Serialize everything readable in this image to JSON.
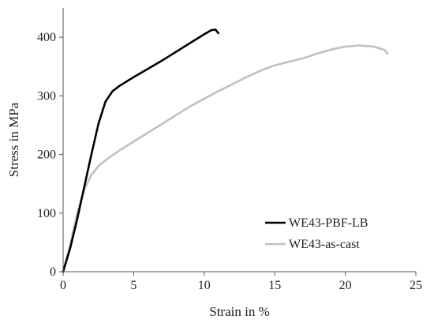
{
  "chart_data": {
    "type": "line",
    "title": "",
    "xlabel": "Strain in %",
    "ylabel": "Stress in MPa",
    "xlim": [
      0,
      25
    ],
    "ylim": [
      0,
      450
    ],
    "xticks": [
      0,
      5,
      10,
      15,
      20,
      25
    ],
    "yticks": [
      0,
      100,
      200,
      300,
      400
    ],
    "grid": false,
    "legend": "bottom-right",
    "series": [
      {
        "name": "WE43-PBF-LB",
        "color": "#000000",
        "points": [
          [
            0,
            0
          ],
          [
            0.5,
            40
          ],
          [
            1.0,
            90
          ],
          [
            1.5,
            145
          ],
          [
            2.0,
            200
          ],
          [
            2.5,
            252
          ],
          [
            3.0,
            290
          ],
          [
            3.5,
            308
          ],
          [
            4.0,
            317
          ],
          [
            5.0,
            332
          ],
          [
            6.0,
            346
          ],
          [
            7.0,
            360
          ],
          [
            8.0,
            375
          ],
          [
            9.0,
            390
          ],
          [
            10.0,
            405
          ],
          [
            10.5,
            412
          ],
          [
            10.8,
            413
          ],
          [
            11.0,
            407
          ]
        ]
      },
      {
        "name": "WE43-as-cast",
        "color": "#c0c0c0",
        "points": [
          [
            0,
            0
          ],
          [
            0.5,
            45
          ],
          [
            1.0,
            100
          ],
          [
            1.5,
            140
          ],
          [
            2.0,
            165
          ],
          [
            2.5,
            180
          ],
          [
            3.0,
            190
          ],
          [
            4.0,
            207
          ],
          [
            5.0,
            222
          ],
          [
            6.0,
            237
          ],
          [
            7.0,
            252
          ],
          [
            8.0,
            267
          ],
          [
            9.0,
            282
          ],
          [
            10.0,
            295
          ],
          [
            11.0,
            308
          ],
          [
            12.0,
            320
          ],
          [
            13.0,
            332
          ],
          [
            14.0,
            343
          ],
          [
            15.0,
            352
          ],
          [
            16.0,
            358
          ],
          [
            17.0,
            364
          ],
          [
            18.0,
            372
          ],
          [
            19.0,
            379
          ],
          [
            20.0,
            384
          ],
          [
            21.0,
            386
          ],
          [
            22.0,
            384
          ],
          [
            22.8,
            378
          ],
          [
            23.0,
            372
          ]
        ]
      }
    ]
  }
}
